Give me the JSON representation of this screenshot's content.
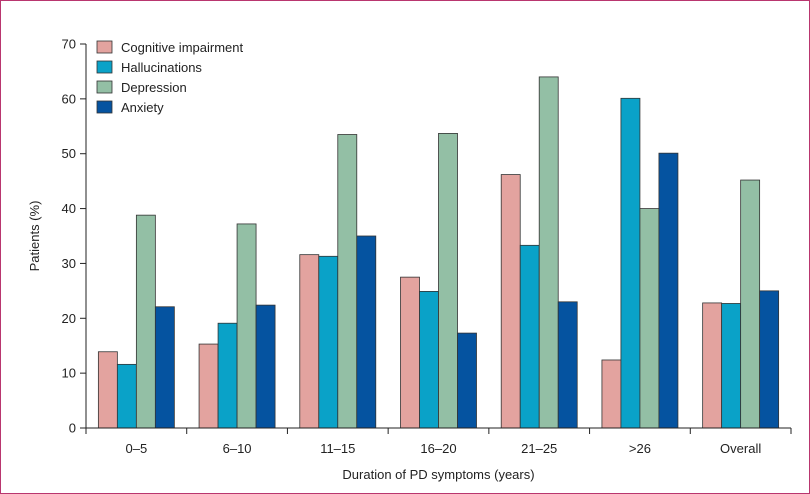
{
  "chart_data": {
    "type": "bar",
    "title": "",
    "xlabel": "Duration of PD symptoms (years)",
    "ylabel": "Patients (%)",
    "ylim": [
      0,
      70
    ],
    "yticks": [
      0,
      10,
      20,
      30,
      40,
      50,
      60,
      70
    ],
    "grid": false,
    "legend_position": "top-left",
    "categories": [
      "0–5",
      "6–10",
      "11–15",
      "16–20",
      "21–25",
      ">26",
      "Overall"
    ],
    "series": [
      {
        "name": "Cognitive impairment",
        "color": "#e3a39f",
        "values": [
          13.9,
          15.3,
          31.6,
          27.5,
          46.2,
          12.4,
          22.8
        ]
      },
      {
        "name": "Hallucinations",
        "color": "#0aa2c8",
        "values": [
          11.6,
          19.1,
          31.3,
          24.9,
          33.3,
          60.1,
          22.7
        ]
      },
      {
        "name": "Depression",
        "color": "#93bfa5",
        "values": [
          38.8,
          37.2,
          53.5,
          53.7,
          64.0,
          40.0,
          45.2
        ]
      },
      {
        "name": "Anxiety",
        "color": "#0553a0",
        "values": [
          22.1,
          22.4,
          35.0,
          17.3,
          23.0,
          50.1,
          25.0
        ]
      }
    ]
  }
}
